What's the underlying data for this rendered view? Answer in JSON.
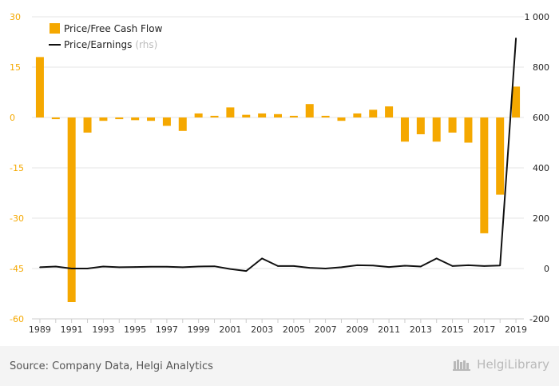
{
  "chart_data": {
    "type": "bar",
    "x": [
      1989,
      1990,
      1991,
      1992,
      1993,
      1994,
      1995,
      1996,
      1997,
      1998,
      1999,
      2000,
      2001,
      2002,
      2003,
      2004,
      2005,
      2006,
      2007,
      2008,
      2009,
      2010,
      2011,
      2012,
      2013,
      2014,
      2015,
      2016,
      2017,
      2018,
      2019
    ],
    "x_tick_labels": [
      "1989",
      "1991",
      "1993",
      "1995",
      "1997",
      "1999",
      "2001",
      "2003",
      "2005",
      "2007",
      "2009",
      "2011",
      "2013",
      "2015",
      "2017",
      "2019"
    ],
    "left_axis": {
      "ylim": [
        -60,
        30
      ],
      "ticks": [
        "30",
        "15",
        "0",
        "-15",
        "-30",
        "-45",
        "-60"
      ],
      "tick_values": [
        30,
        15,
        0,
        -15,
        -30,
        -45,
        -60
      ]
    },
    "right_axis": {
      "ylim": [
        -200,
        1000
      ],
      "ticks": [
        "1 000",
        "800",
        "600",
        "400",
        "200",
        "0",
        "-200"
      ],
      "tick_values": [
        1000,
        800,
        600,
        400,
        200,
        0,
        -200
      ]
    },
    "series": [
      {
        "name": "Price/Free Cash Flow",
        "type": "bar",
        "axis": "left",
        "color": "#f5a800",
        "values": [
          18.0,
          -0.5,
          -55.0,
          -4.5,
          -1.0,
          -0.5,
          -0.8,
          -1.0,
          -2.5,
          -4.0,
          1.2,
          0.5,
          3.0,
          0.8,
          1.2,
          1.0,
          0.5,
          4.0,
          0.5,
          -1.0,
          1.2,
          2.3,
          3.3,
          -7.2,
          -5.0,
          -7.2,
          -4.5,
          -7.5,
          -34.5,
          -23.0,
          9.2
        ]
      },
      {
        "name": "Price/Earnings",
        "name_suffix": "(rhs)",
        "type": "line",
        "axis": "right",
        "color": "#111111",
        "values": [
          5,
          8,
          0,
          0,
          8,
          5,
          6,
          7,
          7,
          5,
          8,
          9,
          -2,
          -10,
          40,
          10,
          10,
          3,
          0,
          5,
          13,
          12,
          6,
          11,
          8,
          40,
          10,
          13,
          10,
          12,
          915
        ]
      }
    ],
    "grid": true,
    "legend_position": "top-left"
  },
  "footer": {
    "source": "Source: Company Data, Helgi Analytics",
    "brand": "HelgiLibrary"
  },
  "colors": {
    "bar": "#f5a800",
    "line": "#111111",
    "left_tick": "#f5a800",
    "right_tick": "#222222",
    "grid": "#e6e6e6"
  }
}
